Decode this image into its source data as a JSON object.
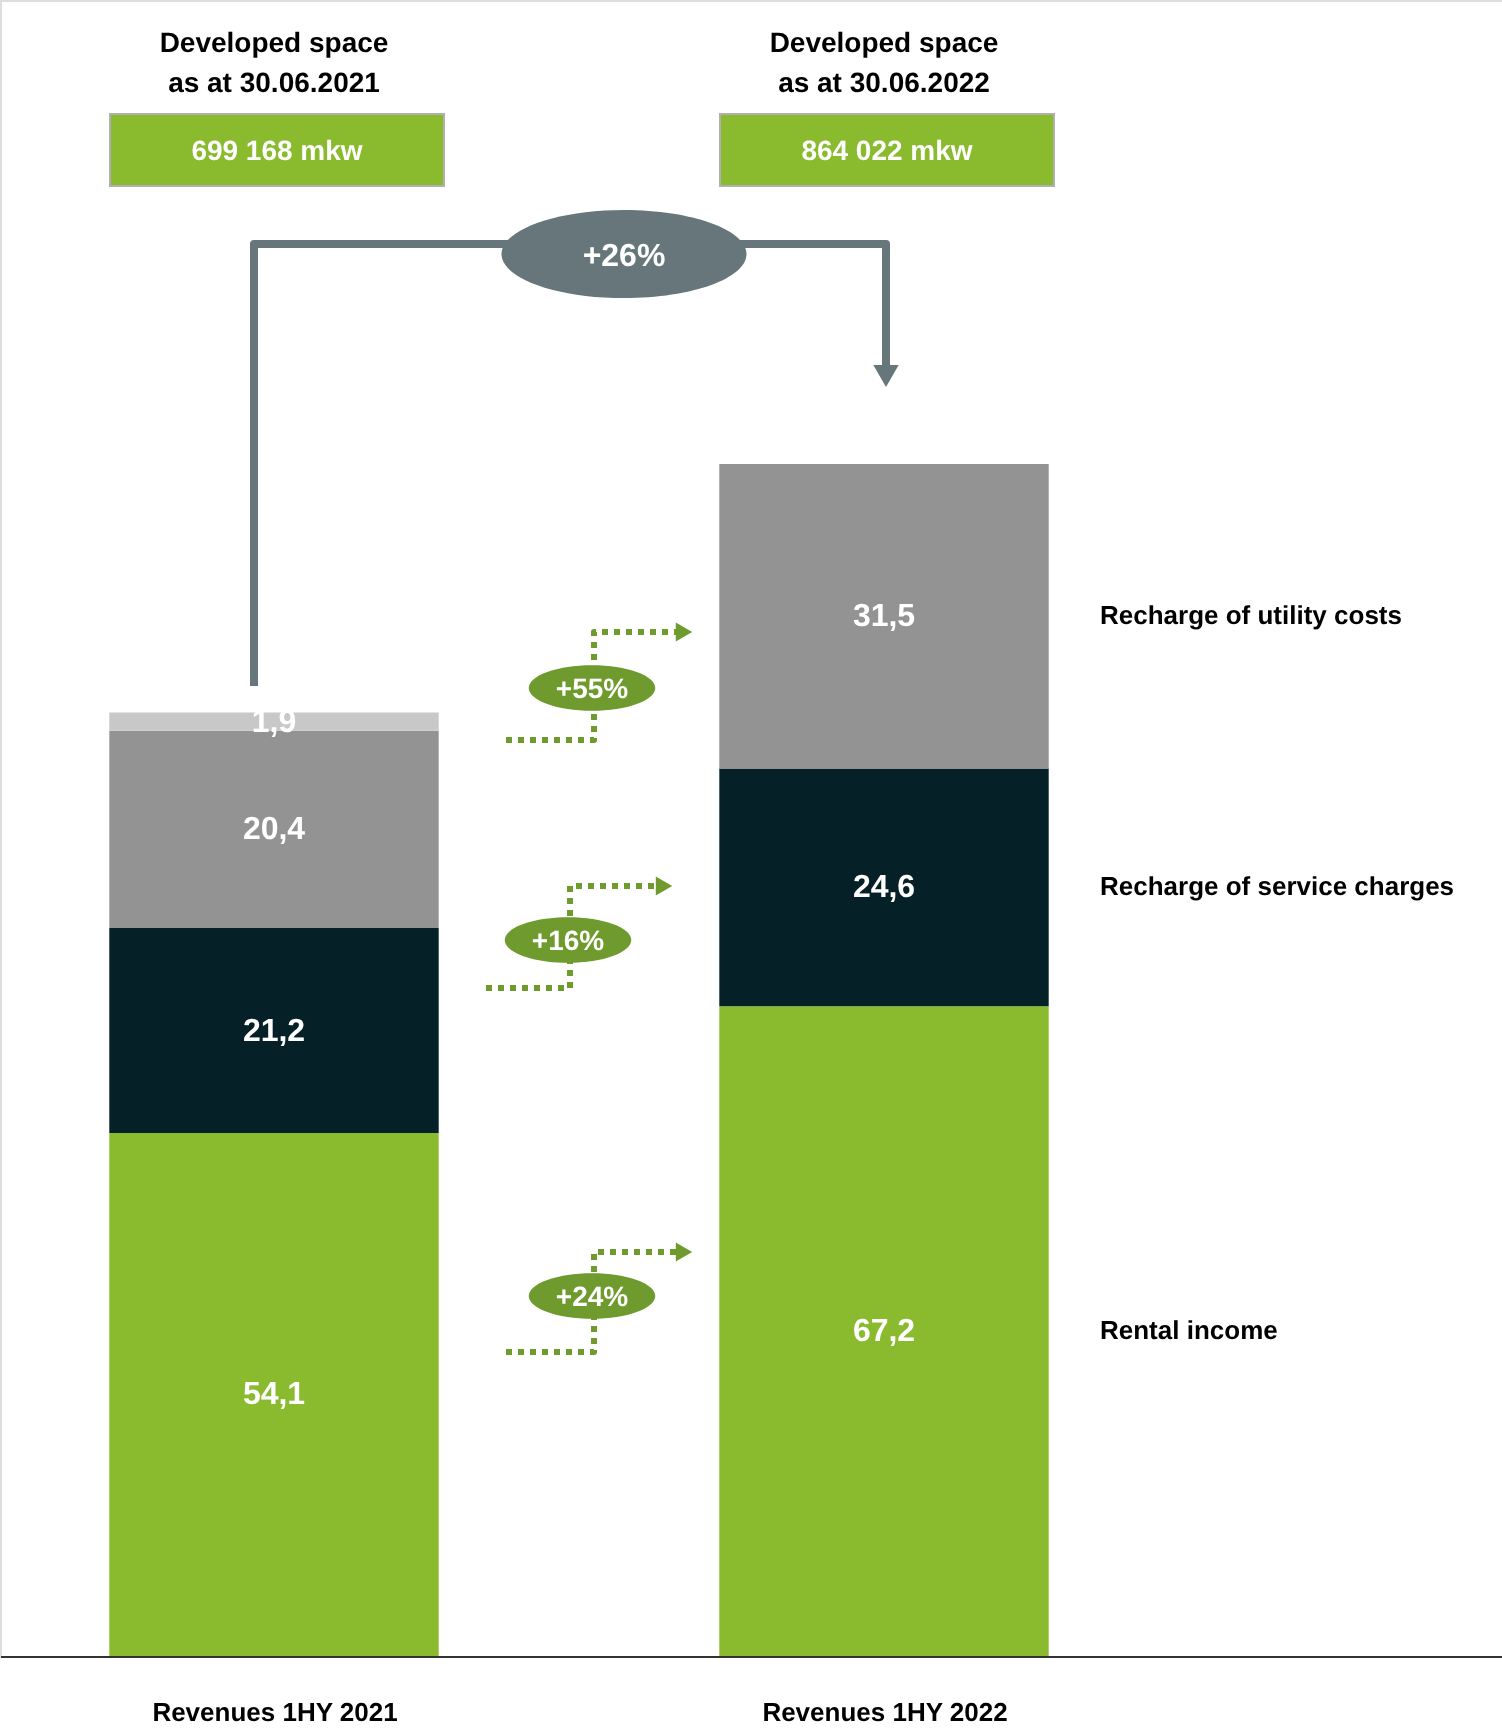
{
  "chart_data": {
    "type": "bar",
    "stacked": true,
    "categories": [
      "Revenues 1HY 2021",
      "Revenues 1HY 2022"
    ],
    "series": [
      {
        "name": "Rental income",
        "color": "#8aba2e",
        "values": [
          54.1,
          67.2
        ],
        "value_labels": [
          "54,1",
          "67,2"
        ]
      },
      {
        "name": "Recharge of service charges",
        "color": "#062028",
        "values": [
          21.2,
          24.6
        ],
        "value_labels": [
          "21,2",
          "24,6"
        ]
      },
      {
        "name": "Recharge of utility costs",
        "color": "#939393",
        "values": [
          20.4,
          31.5
        ],
        "value_labels": [
          "20,4",
          "31,5"
        ]
      },
      {
        "color": "#c8c8c8",
        "values": [
          1.9,
          null
        ],
        "value_labels": [
          "1,9",
          null
        ]
      }
    ],
    "annotations": [
      "Developed space\nas at 30.06.2021",
      "699 168 mkw",
      "Developed space\nas at 30.06.2022",
      "864 022 mkw",
      "+26%",
      "+24%",
      "+16%",
      "+55%"
    ]
  }
}
